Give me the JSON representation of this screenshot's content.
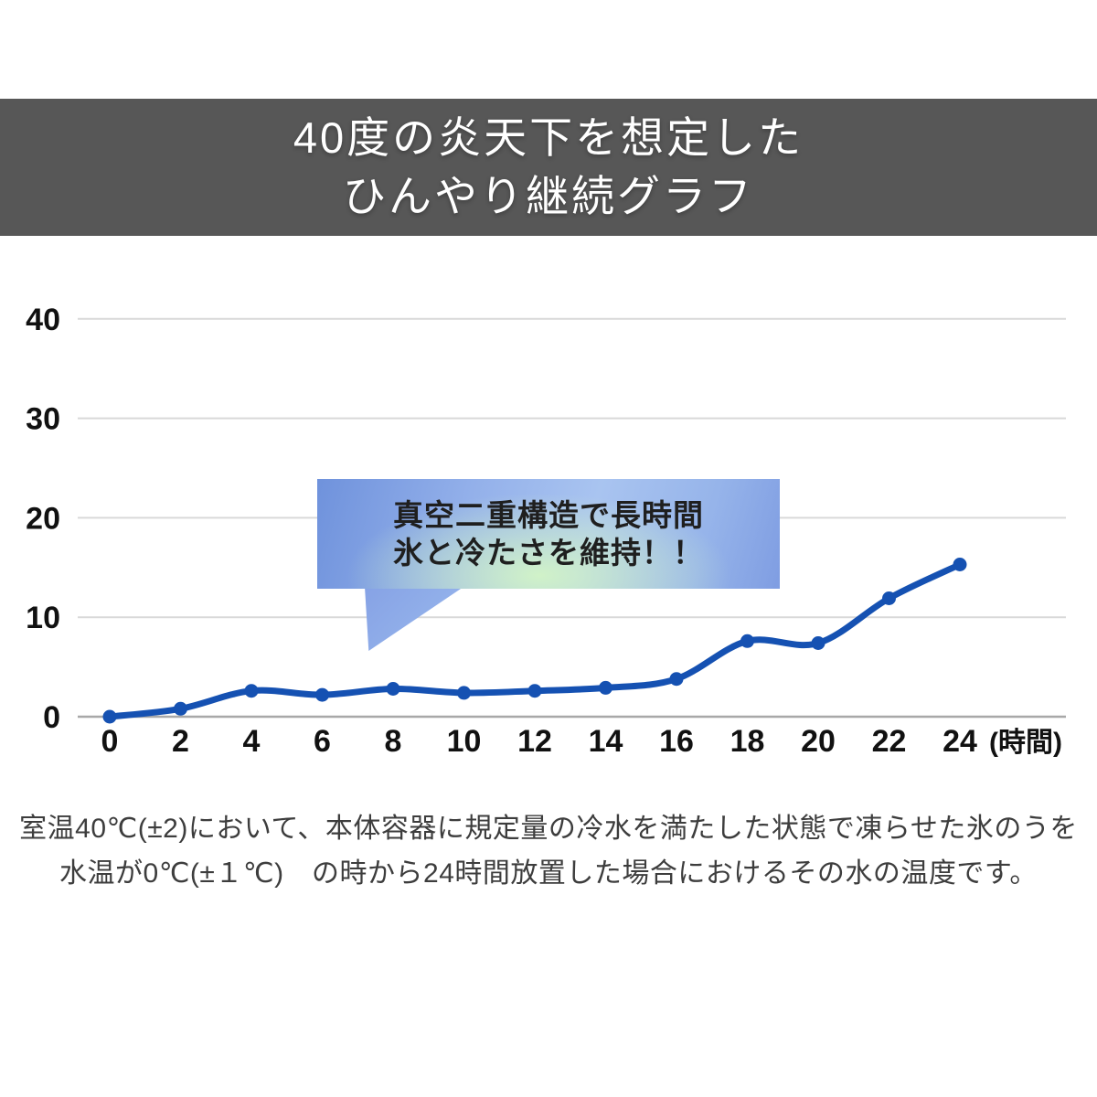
{
  "header": {
    "title_line1": "40度の炎天下を想定した",
    "title_line2": "ひんやり継続グラフ",
    "bg_color": "#575757",
    "text_color": "#ffffff"
  },
  "callout": {
    "line1": "真空二重構造で長時間",
    "line2": "氷と冷たさを維持！！",
    "text_color": "#1f1f1f",
    "bubble_blue": "#7f9de2",
    "bubble_light_blue": "#a9c4f0",
    "bubble_glow_green": "#d3f5c6"
  },
  "footnote": {
    "line1": "室温40℃(±2)において、本体容器に規定量の冷水を満たした状態で凍らせた氷のうを",
    "line2": "水温が0℃(±１℃)　の時から24時間放置した場合におけるその水の温度です。"
  },
  "chart_data": {
    "type": "line",
    "x": [
      0,
      2,
      4,
      6,
      8,
      10,
      12,
      14,
      16,
      18,
      20,
      22,
      24
    ],
    "x_tick_labels": [
      "0",
      "2",
      "4",
      "6",
      "8",
      "10",
      "12",
      "14",
      "16",
      "18",
      "20",
      "22",
      "24"
    ],
    "x_axis_unit_label": "(時間)",
    "series": [
      {
        "values": [
          0,
          0.8,
          2.6,
          2.2,
          2.8,
          2.4,
          2.6,
          2.9,
          3.8,
          7.6,
          7.4,
          11.9,
          15.3
        ],
        "color": "#1551b2"
      }
    ],
    "y_ticks": [
      0,
      10,
      20,
      30,
      40
    ],
    "ylim": [
      0,
      40
    ],
    "xlim": [
      0,
      24
    ],
    "grid": true,
    "legend_position": "none",
    "colors": {
      "gridline": "#d9d9d9",
      "axis_line": "#a8a8a8",
      "tick_label": "#111111"
    }
  }
}
